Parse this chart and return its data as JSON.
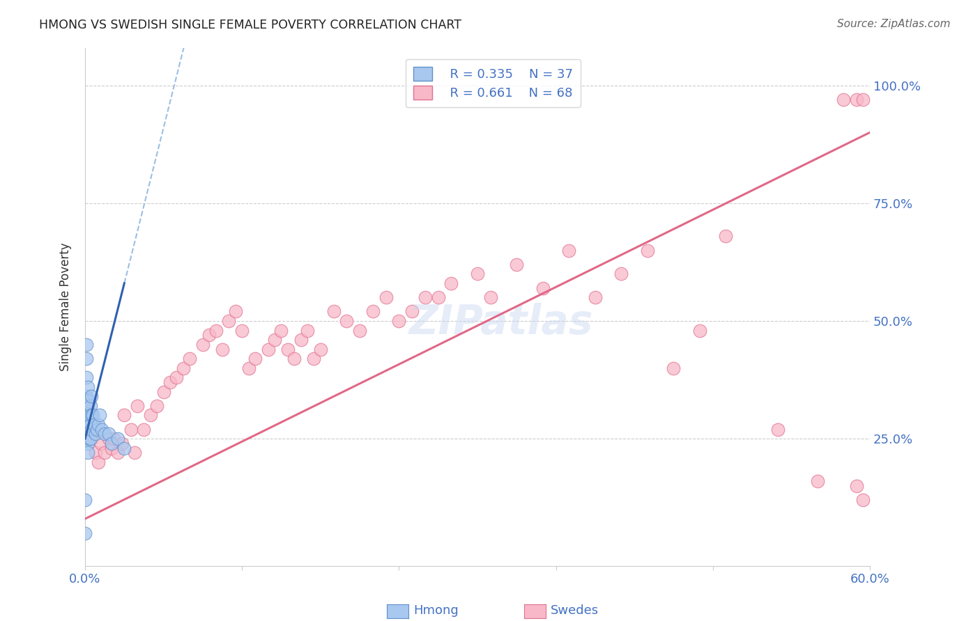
{
  "title": "HMONG VS SWEDISH SINGLE FEMALE POVERTY CORRELATION CHART",
  "source": "Source: ZipAtlas.com",
  "ylabel_label": "Single Female Poverty",
  "xlim": [
    0.0,
    0.6
  ],
  "ylim": [
    -0.02,
    1.08
  ],
  "grid_color": "#cccccc",
  "background_color": "#ffffff",
  "hmong_color": "#a8c8f0",
  "hmong_edge_color": "#6090c8",
  "swedes_color": "#f8b8c8",
  "swedes_edge_color": "#e07090",
  "hmong_line_color": "#3060b0",
  "swedes_line_color": "#e06888",
  "watermark_color": "#c8d8f0",
  "hmong_x": [
    0.0,
    0.0,
    0.001,
    0.001,
    0.001,
    0.001,
    0.001,
    0.001,
    0.001,
    0.002,
    0.002,
    0.002,
    0.002,
    0.002,
    0.002,
    0.003,
    0.003,
    0.003,
    0.003,
    0.004,
    0.004,
    0.004,
    0.005,
    0.005,
    0.005,
    0.006,
    0.007,
    0.008,
    0.009,
    0.01,
    0.011,
    0.013,
    0.015,
    0.018,
    0.02,
    0.025,
    0.03
  ],
  "hmong_y": [
    0.05,
    0.12,
    0.45,
    0.42,
    0.38,
    0.34,
    0.3,
    0.28,
    0.25,
    0.36,
    0.32,
    0.29,
    0.26,
    0.24,
    0.22,
    0.33,
    0.3,
    0.27,
    0.25,
    0.32,
    0.28,
    0.25,
    0.34,
    0.3,
    0.27,
    0.3,
    0.28,
    0.26,
    0.27,
    0.28,
    0.3,
    0.27,
    0.26,
    0.26,
    0.24,
    0.25,
    0.23
  ],
  "swedes_x": [
    0.005,
    0.008,
    0.01,
    0.012,
    0.015,
    0.018,
    0.02,
    0.022,
    0.025,
    0.028,
    0.03,
    0.035,
    0.038,
    0.04,
    0.045,
    0.05,
    0.055,
    0.06,
    0.065,
    0.07,
    0.075,
    0.08,
    0.09,
    0.095,
    0.1,
    0.105,
    0.11,
    0.115,
    0.12,
    0.125,
    0.13,
    0.14,
    0.145,
    0.15,
    0.155,
    0.16,
    0.165,
    0.17,
    0.175,
    0.18,
    0.19,
    0.2,
    0.21,
    0.22,
    0.23,
    0.24,
    0.25,
    0.26,
    0.27,
    0.28,
    0.3,
    0.31,
    0.33,
    0.35,
    0.37,
    0.39,
    0.41,
    0.43,
    0.45,
    0.47,
    0.49,
    0.53,
    0.56,
    0.58,
    0.59,
    0.595,
    0.59,
    0.595
  ],
  "swedes_y": [
    0.25,
    0.22,
    0.2,
    0.24,
    0.22,
    0.25,
    0.23,
    0.25,
    0.22,
    0.24,
    0.3,
    0.27,
    0.22,
    0.32,
    0.27,
    0.3,
    0.32,
    0.35,
    0.37,
    0.38,
    0.4,
    0.42,
    0.45,
    0.47,
    0.48,
    0.44,
    0.5,
    0.52,
    0.48,
    0.4,
    0.42,
    0.44,
    0.46,
    0.48,
    0.44,
    0.42,
    0.46,
    0.48,
    0.42,
    0.44,
    0.52,
    0.5,
    0.48,
    0.52,
    0.55,
    0.5,
    0.52,
    0.55,
    0.55,
    0.58,
    0.6,
    0.55,
    0.62,
    0.57,
    0.65,
    0.55,
    0.6,
    0.65,
    0.4,
    0.48,
    0.68,
    0.27,
    0.16,
    0.97,
    0.97,
    0.97,
    0.15,
    0.12
  ]
}
